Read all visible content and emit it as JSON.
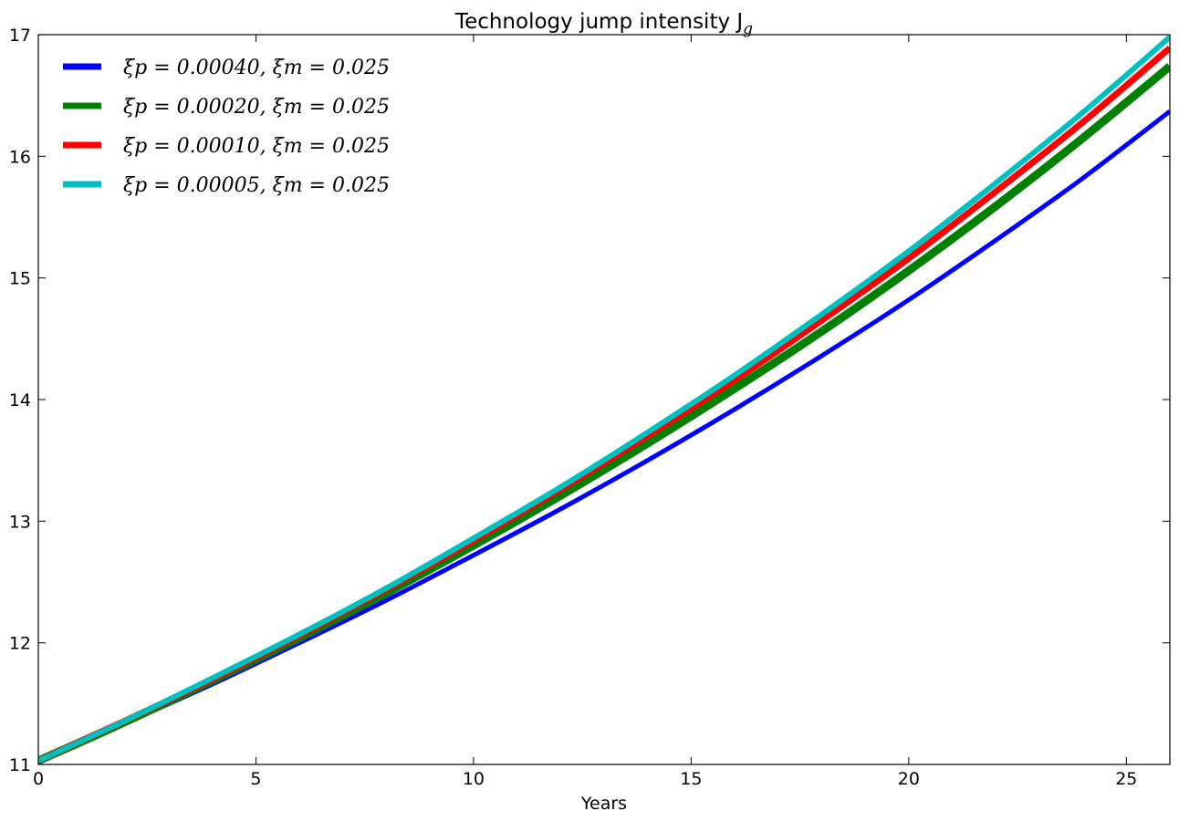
{
  "chart_data": {
    "type": "line",
    "title": "Technology jump intensity J",
    "title_subscript": "g",
    "xlabel": "Years",
    "ylabel": "",
    "xlim": [
      0,
      26
    ],
    "ylim": [
      11,
      17
    ],
    "xticks": [
      0,
      5,
      10,
      15,
      20,
      25
    ],
    "yticks": [
      11,
      12,
      13,
      14,
      15,
      16,
      17
    ],
    "grid": false,
    "legend_position": "top-left",
    "x": [
      0,
      2,
      4,
      6,
      8,
      10,
      12,
      14,
      16,
      18,
      20,
      22,
      24,
      26
    ],
    "series": [
      {
        "name": "ξp = 0.00040, ξm = 0.025",
        "color": "#0000ff",
        "values": [
          11.02,
          11.34,
          11.66,
          12.0,
          12.35,
          12.72,
          13.1,
          13.5,
          13.92,
          14.36,
          14.82,
          15.31,
          15.82,
          16.37
        ]
      },
      {
        "name": "ξp = 0.00020, ξm = 0.025",
        "color": "#008000",
        "values": [
          11.03,
          11.35,
          11.69,
          12.04,
          12.41,
          12.8,
          13.21,
          13.64,
          14.09,
          14.56,
          15.06,
          15.59,
          16.15,
          16.74
        ]
      },
      {
        "name": "ξp = 0.00010, ξm = 0.025",
        "color": "#ff0000",
        "values": [
          11.03,
          11.36,
          11.7,
          12.06,
          12.44,
          12.84,
          13.26,
          13.7,
          14.16,
          14.65,
          15.16,
          15.71,
          16.28,
          16.89
        ]
      },
      {
        "name": "ξp = 0.00005, ξm = 0.025",
        "color": "#00bfbf",
        "values": [
          11.03,
          11.36,
          11.71,
          12.07,
          12.45,
          12.86,
          13.28,
          13.73,
          14.2,
          14.7,
          15.22,
          15.78,
          16.36,
          16.98
        ]
      }
    ]
  }
}
